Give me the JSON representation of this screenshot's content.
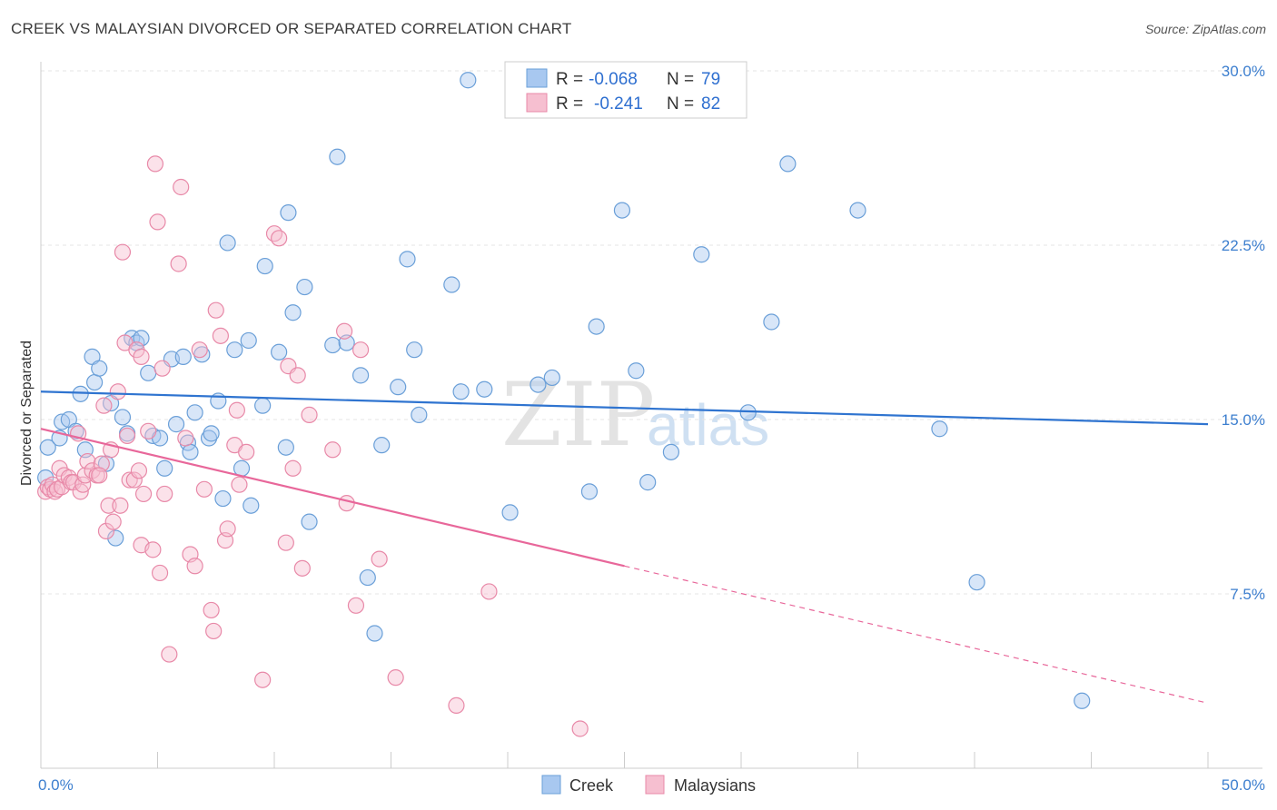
{
  "title": "CREEK VS MALAYSIAN DIVORCED OR SEPARATED CORRELATION CHART",
  "source": "Source: ZipAtlas.com",
  "watermark": {
    "zip": "ZIP",
    "atlas": "atlas"
  },
  "legend_top": [
    {
      "r_label": "R =",
      "r_value": "-0.068",
      "n_label": "N =",
      "n_value": "79"
    },
    {
      "r_label": "R =",
      "r_value": "-0.241",
      "n_label": "N =",
      "n_value": "82"
    }
  ],
  "chart_data": {
    "type": "scatter",
    "ylabel": "Divorced or Separated",
    "xlim": [
      0,
      50
    ],
    "ylim": [
      0,
      30
    ],
    "x_tick_labels": [
      "0.0%",
      "50.0%"
    ],
    "y_ticks": [
      7.5,
      15.0,
      22.5,
      30.0
    ],
    "y_tick_labels": [
      "7.5%",
      "15.0%",
      "22.5%",
      "30.0%"
    ],
    "grid": true,
    "legend_position": "bottom-center",
    "series": [
      {
        "name": "Creek",
        "color": "#a8c8f0",
        "stroke": "#6a9fd8",
        "trend_color": "#2f74d0",
        "trend": {
          "x0": 0,
          "y0": 16.2,
          "x1": 50,
          "y1": 14.8
        },
        "points": [
          [
            0.2,
            12.5
          ],
          [
            0.3,
            13.8
          ],
          [
            0.8,
            14.2
          ],
          [
            0.9,
            14.9
          ],
          [
            1.2,
            15.0
          ],
          [
            1.5,
            14.5
          ],
          [
            1.7,
            16.1
          ],
          [
            1.9,
            13.7
          ],
          [
            2.2,
            17.7
          ],
          [
            2.3,
            16.6
          ],
          [
            2.5,
            17.2
          ],
          [
            2.8,
            13.1
          ],
          [
            3.0,
            15.7
          ],
          [
            3.2,
            9.9
          ],
          [
            3.5,
            15.1
          ],
          [
            3.7,
            14.4
          ],
          [
            3.9,
            18.5
          ],
          [
            4.1,
            18.3
          ],
          [
            4.3,
            18.5
          ],
          [
            4.6,
            17.0
          ],
          [
            4.8,
            14.3
          ],
          [
            5.1,
            14.2
          ],
          [
            5.3,
            12.9
          ],
          [
            5.6,
            17.6
          ],
          [
            5.8,
            14.8
          ],
          [
            6.1,
            17.7
          ],
          [
            6.3,
            14.0
          ],
          [
            6.4,
            13.6
          ],
          [
            6.6,
            15.3
          ],
          [
            6.9,
            17.8
          ],
          [
            7.2,
            14.2
          ],
          [
            7.3,
            14.4
          ],
          [
            7.6,
            15.8
          ],
          [
            7.8,
            11.6
          ],
          [
            8.0,
            22.6
          ],
          [
            8.3,
            18.0
          ],
          [
            8.6,
            12.9
          ],
          [
            8.9,
            18.4
          ],
          [
            9.0,
            11.3
          ],
          [
            9.5,
            15.6
          ],
          [
            9.6,
            21.6
          ],
          [
            10.2,
            17.9
          ],
          [
            10.5,
            13.8
          ],
          [
            10.6,
            23.9
          ],
          [
            10.8,
            19.6
          ],
          [
            11.3,
            20.7
          ],
          [
            11.5,
            10.6
          ],
          [
            12.5,
            18.2
          ],
          [
            12.7,
            26.3
          ],
          [
            13.1,
            18.3
          ],
          [
            13.7,
            16.9
          ],
          [
            14.0,
            8.2
          ],
          [
            14.3,
            5.8
          ],
          [
            14.6,
            13.9
          ],
          [
            15.3,
            16.4
          ],
          [
            15.7,
            21.9
          ],
          [
            16.0,
            18.0
          ],
          [
            16.2,
            15.2
          ],
          [
            17.6,
            20.8
          ],
          [
            18.0,
            16.2
          ],
          [
            18.3,
            29.6
          ],
          [
            19.0,
            16.3
          ],
          [
            20.1,
            11.0
          ],
          [
            21.3,
            16.5
          ],
          [
            21.9,
            16.8
          ],
          [
            23.5,
            11.9
          ],
          [
            23.8,
            19.0
          ],
          [
            24.9,
            24.0
          ],
          [
            25.5,
            17.1
          ],
          [
            26.0,
            12.3
          ],
          [
            27.0,
            13.6
          ],
          [
            28.3,
            22.1
          ],
          [
            30.3,
            15.3
          ],
          [
            31.3,
            19.2
          ],
          [
            32.0,
            26.0
          ],
          [
            35.0,
            24.0
          ],
          [
            38.5,
            14.6
          ],
          [
            40.1,
            8.0
          ],
          [
            44.6,
            2.9
          ]
        ]
      },
      {
        "name": "Malaysians",
        "color": "#f6bfd0",
        "stroke": "#e889a8",
        "trend_color": "#e8679a",
        "trend": {
          "x0": 0,
          "y0": 14.6,
          "x1": 25,
          "y1": 8.7
        },
        "trend_dashed": {
          "x0": 25,
          "y0": 8.7,
          "x1": 50,
          "y1": 2.8
        },
        "points": [
          [
            0.2,
            11.9
          ],
          [
            0.3,
            12.1
          ],
          [
            0.4,
            12.0
          ],
          [
            0.5,
            12.2
          ],
          [
            0.6,
            11.9
          ],
          [
            0.7,
            12.0
          ],
          [
            0.8,
            12.9
          ],
          [
            0.9,
            12.1
          ],
          [
            1.0,
            12.6
          ],
          [
            1.2,
            12.5
          ],
          [
            1.3,
            12.3
          ],
          [
            1.4,
            12.3
          ],
          [
            1.6,
            14.4
          ],
          [
            1.7,
            11.9
          ],
          [
            1.8,
            12.2
          ],
          [
            1.9,
            12.6
          ],
          [
            2.0,
            13.2
          ],
          [
            2.2,
            12.8
          ],
          [
            2.4,
            12.6
          ],
          [
            2.6,
            13.1
          ],
          [
            2.7,
            15.6
          ],
          [
            2.8,
            10.2
          ],
          [
            2.9,
            11.3
          ],
          [
            3.0,
            13.7
          ],
          [
            3.1,
            10.6
          ],
          [
            3.3,
            16.2
          ],
          [
            3.4,
            11.3
          ],
          [
            3.5,
            22.2
          ],
          [
            3.6,
            18.3
          ],
          [
            3.8,
            12.4
          ],
          [
            4.0,
            12.4
          ],
          [
            4.1,
            18.0
          ],
          [
            4.2,
            12.8
          ],
          [
            4.3,
            9.6
          ],
          [
            4.4,
            11.8
          ],
          [
            4.6,
            14.5
          ],
          [
            4.8,
            9.4
          ],
          [
            4.9,
            26.0
          ],
          [
            5.0,
            23.5
          ],
          [
            5.1,
            8.4
          ],
          [
            5.2,
            17.2
          ],
          [
            5.3,
            11.8
          ],
          [
            5.5,
            4.9
          ],
          [
            5.9,
            21.7
          ],
          [
            6.0,
            25.0
          ],
          [
            6.2,
            14.2
          ],
          [
            6.4,
            9.2
          ],
          [
            6.6,
            8.7
          ],
          [
            6.8,
            18.0
          ],
          [
            7.0,
            12.0
          ],
          [
            7.3,
            6.8
          ],
          [
            7.4,
            5.9
          ],
          [
            7.5,
            19.7
          ],
          [
            7.7,
            18.6
          ],
          [
            7.9,
            9.8
          ],
          [
            8.0,
            10.3
          ],
          [
            8.3,
            13.9
          ],
          [
            8.4,
            15.4
          ],
          [
            8.5,
            12.2
          ],
          [
            8.8,
            13.6
          ],
          [
            9.5,
            3.8
          ],
          [
            10.0,
            23.0
          ],
          [
            10.2,
            22.8
          ],
          [
            10.5,
            9.7
          ],
          [
            10.6,
            17.3
          ],
          [
            10.8,
            12.9
          ],
          [
            11.0,
            16.9
          ],
          [
            11.2,
            8.6
          ],
          [
            11.5,
            15.2
          ],
          [
            12.5,
            13.7
          ],
          [
            13.0,
            18.8
          ],
          [
            13.1,
            11.4
          ],
          [
            13.5,
            7.0
          ],
          [
            13.7,
            18.0
          ],
          [
            14.5,
            9.0
          ],
          [
            15.2,
            3.9
          ],
          [
            17.8,
            2.7
          ],
          [
            19.2,
            7.6
          ],
          [
            23.1,
            1.7
          ],
          [
            4.3,
            17.7
          ],
          [
            3.7,
            14.3
          ],
          [
            2.5,
            12.6
          ]
        ]
      }
    ]
  }
}
